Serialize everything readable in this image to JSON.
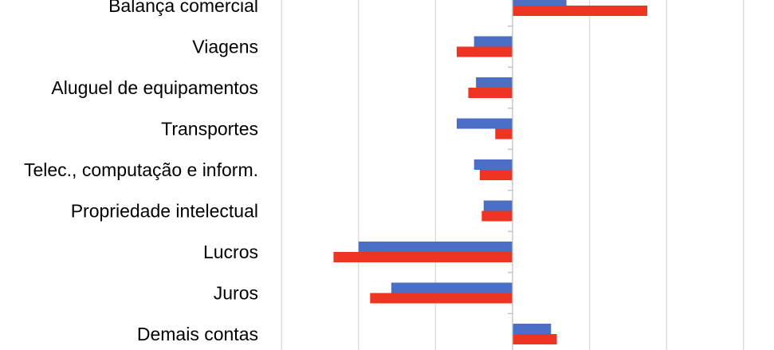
{
  "chart_data": {
    "type": "bar",
    "orientation": "horizontal",
    "categories": [
      "Balança comercial",
      "Viagens",
      "Aluguel de equipamentos",
      "Transportes",
      "Telec., computação e inform.",
      "Propriedade intelectual",
      "Lucros",
      "Juros",
      "Demais contas"
    ],
    "series": [
      {
        "color": "#4A6FC4",
        "values": [
          14,
          -10,
          -9.5,
          -14.5,
          -10,
          -7.5,
          -40,
          -31.5,
          10
        ]
      },
      {
        "color": "#EE3524",
        "values": [
          35,
          -14.5,
          -11.5,
          -4.5,
          -8.5,
          -8,
          -46.5,
          -37,
          11.5
        ]
      }
    ],
    "xlim": [
      -60,
      60
    ],
    "grid": true,
    "legend": "none"
  }
}
